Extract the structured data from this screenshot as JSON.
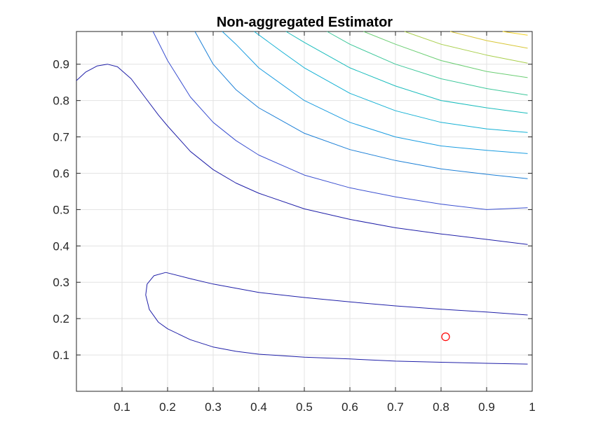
{
  "chart_data": {
    "type": "contour",
    "title": "Non-aggregated Estimator",
    "xlabel": "",
    "ylabel": "",
    "xlim": [
      0,
      1
    ],
    "ylim": [
      0,
      0.99
    ],
    "grid": true,
    "x_ticks": [
      0.1,
      0.2,
      0.3,
      0.4,
      0.5,
      0.6,
      0.7,
      0.8,
      0.9,
      1
    ],
    "x_tick_labels": [
      "0.1",
      "0.2",
      "0.3",
      "0.4",
      "0.5",
      "0.6",
      "0.7",
      "0.8",
      "0.9",
      "1"
    ],
    "y_ticks": [
      0.1,
      0.2,
      0.3,
      0.4,
      0.5,
      0.6,
      0.7,
      0.8,
      0.9
    ],
    "y_tick_labels": [
      "0.1",
      "0.2",
      "0.3",
      "0.4",
      "0.5",
      "0.6",
      "0.7",
      "0.8",
      "0.9"
    ],
    "contour_lines": [
      {
        "color": "#1f1fa8",
        "points": [
          [
            0.196,
            0.327
          ],
          [
            0.25,
            0.31
          ],
          [
            0.3,
            0.295
          ],
          [
            0.4,
            0.272
          ],
          [
            0.5,
            0.258
          ],
          [
            0.6,
            0.246
          ],
          [
            0.7,
            0.235
          ],
          [
            0.8,
            0.226
          ],
          [
            0.9,
            0.218
          ],
          [
            0.99,
            0.21
          ]
        ]
      },
      {
        "color": "#1f1fa8",
        "points": [
          [
            0.196,
            0.327
          ],
          [
            0.17,
            0.318
          ],
          [
            0.155,
            0.295
          ],
          [
            0.152,
            0.265
          ],
          [
            0.16,
            0.225
          ],
          [
            0.18,
            0.19
          ],
          [
            0.2,
            0.172
          ],
          [
            0.25,
            0.142
          ],
          [
            0.3,
            0.122
          ],
          [
            0.35,
            0.11
          ],
          [
            0.4,
            0.102
          ],
          [
            0.5,
            0.094
          ],
          [
            0.6,
            0.089
          ],
          [
            0.7,
            0.083
          ],
          [
            0.8,
            0.08
          ],
          [
            0.9,
            0.077
          ],
          [
            0.99,
            0.075
          ]
        ]
      },
      {
        "color": "#1f1fa8",
        "points": [
          [
            0.0,
            0.855
          ],
          [
            0.02,
            0.878
          ],
          [
            0.045,
            0.895
          ],
          [
            0.068,
            0.9
          ],
          [
            0.09,
            0.893
          ],
          [
            0.12,
            0.86
          ],
          [
            0.15,
            0.81
          ],
          [
            0.18,
            0.76
          ],
          [
            0.2,
            0.73
          ],
          [
            0.25,
            0.66
          ],
          [
            0.3,
            0.61
          ],
          [
            0.35,
            0.573
          ],
          [
            0.4,
            0.545
          ],
          [
            0.5,
            0.502
          ],
          [
            0.6,
            0.473
          ],
          [
            0.7,
            0.45
          ],
          [
            0.8,
            0.433
          ],
          [
            0.9,
            0.418
          ],
          [
            0.99,
            0.404
          ]
        ]
      },
      {
        "color": "#3a4fd0",
        "points": [
          [
            0.168,
            0.99
          ],
          [
            0.2,
            0.91
          ],
          [
            0.25,
            0.81
          ],
          [
            0.3,
            0.74
          ],
          [
            0.35,
            0.69
          ],
          [
            0.4,
            0.65
          ],
          [
            0.5,
            0.595
          ],
          [
            0.6,
            0.56
          ],
          [
            0.7,
            0.535
          ],
          [
            0.8,
            0.515
          ],
          [
            0.9,
            0.5
          ],
          [
            0.99,
            0.505
          ]
        ]
      },
      {
        "color": "#1b7fd6",
        "points": [
          [
            0.26,
            0.99
          ],
          [
            0.3,
            0.9
          ],
          [
            0.35,
            0.83
          ],
          [
            0.4,
            0.78
          ],
          [
            0.5,
            0.71
          ],
          [
            0.6,
            0.665
          ],
          [
            0.7,
            0.635
          ],
          [
            0.8,
            0.612
          ],
          [
            0.9,
            0.597
          ],
          [
            0.99,
            0.585
          ]
        ]
      },
      {
        "color": "#1a9ce0",
        "points": [
          [
            0.32,
            0.99
          ],
          [
            0.35,
            0.955
          ],
          [
            0.4,
            0.89
          ],
          [
            0.5,
            0.8
          ],
          [
            0.6,
            0.74
          ],
          [
            0.7,
            0.7
          ],
          [
            0.8,
            0.675
          ],
          [
            0.9,
            0.663
          ],
          [
            0.99,
            0.654
          ]
        ]
      },
      {
        "color": "#12b0d4",
        "points": [
          [
            0.39,
            0.99
          ],
          [
            0.45,
            0.935
          ],
          [
            0.5,
            0.89
          ],
          [
            0.6,
            0.82
          ],
          [
            0.7,
            0.772
          ],
          [
            0.8,
            0.74
          ],
          [
            0.9,
            0.722
          ],
          [
            0.99,
            0.712
          ]
        ]
      },
      {
        "color": "#19bcbc",
        "points": [
          [
            0.46,
            0.99
          ],
          [
            0.5,
            0.96
          ],
          [
            0.6,
            0.89
          ],
          [
            0.7,
            0.84
          ],
          [
            0.8,
            0.8
          ],
          [
            0.9,
            0.78
          ],
          [
            0.99,
            0.765
          ]
        ]
      },
      {
        "color": "#3cc79a",
        "points": [
          [
            0.55,
            0.99
          ],
          [
            0.6,
            0.955
          ],
          [
            0.7,
            0.9
          ],
          [
            0.8,
            0.86
          ],
          [
            0.9,
            0.833
          ],
          [
            0.99,
            0.815
          ]
        ]
      },
      {
        "color": "#6cce74",
        "points": [
          [
            0.63,
            0.99
          ],
          [
            0.7,
            0.955
          ],
          [
            0.8,
            0.91
          ],
          [
            0.9,
            0.88
          ],
          [
            0.99,
            0.863
          ]
        ]
      },
      {
        "color": "#a9cf4c",
        "points": [
          [
            0.72,
            0.99
          ],
          [
            0.8,
            0.955
          ],
          [
            0.9,
            0.925
          ],
          [
            0.99,
            0.903
          ]
        ]
      },
      {
        "color": "#d8c738",
        "points": [
          [
            0.82,
            0.99
          ],
          [
            0.9,
            0.965
          ],
          [
            0.99,
            0.944
          ]
        ]
      },
      {
        "color": "#f4d320",
        "points": [
          [
            0.935,
            0.99
          ],
          [
            0.99,
            0.98
          ]
        ]
      }
    ],
    "markers": [
      {
        "x": 0.81,
        "y": 0.15,
        "shape": "circle",
        "color": "#ff0000"
      }
    ]
  }
}
